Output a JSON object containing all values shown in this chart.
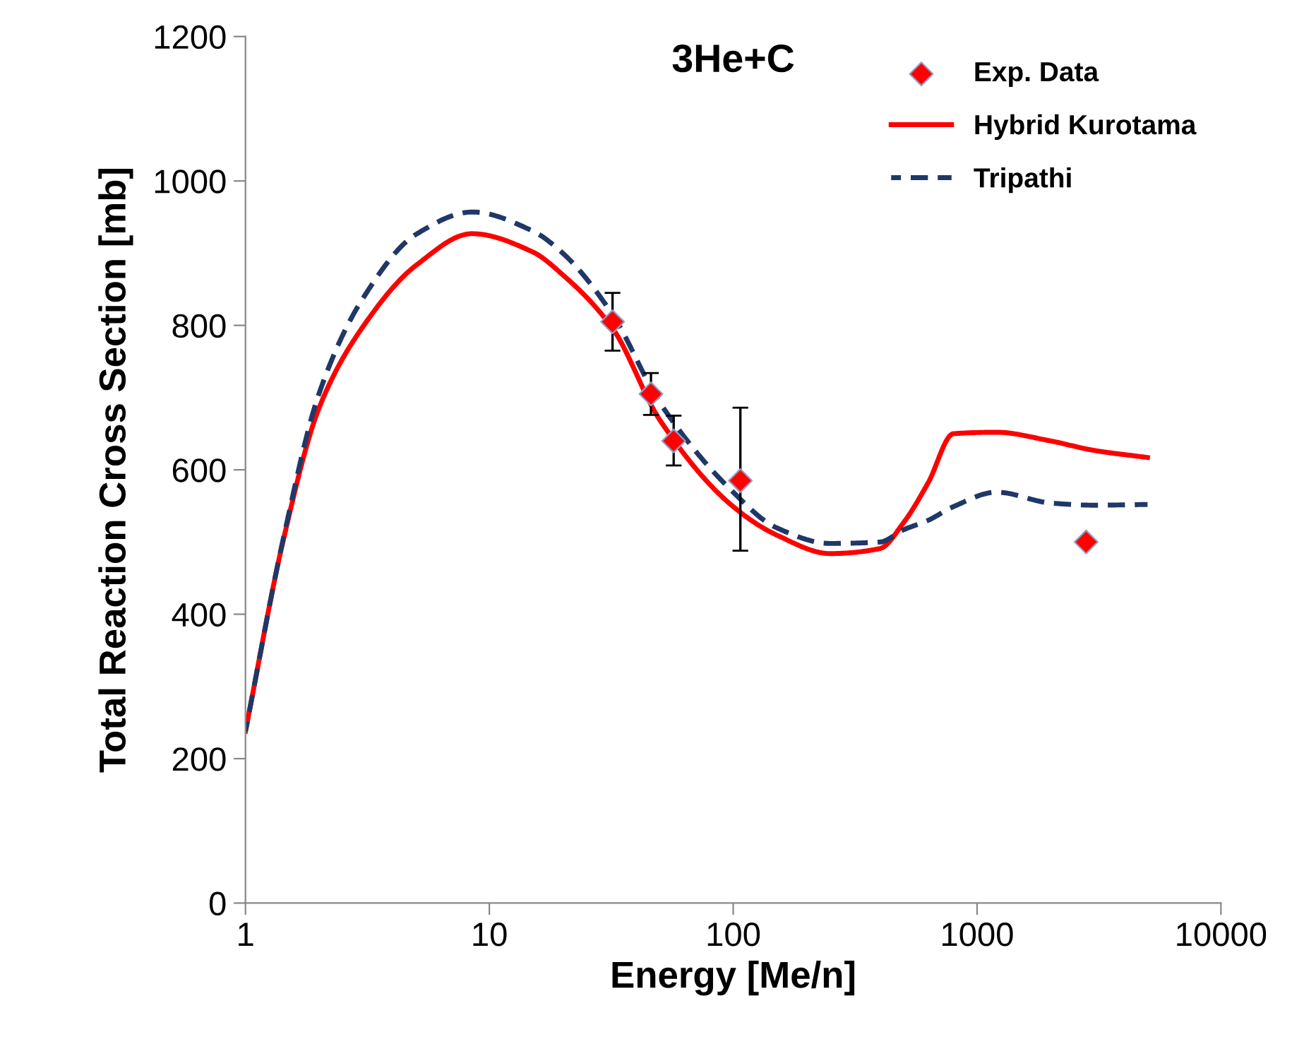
{
  "chart_data": {
    "type": "line",
    "title": "3He+C",
    "xlabel": "Energy [Me/n]",
    "ylabel": "Total Reaction Cross Section [mb]",
    "log": "x",
    "xlim": [
      1,
      10000
    ],
    "xticks": [
      1,
      10,
      100,
      1000,
      10000
    ],
    "ylim": [
      0,
      1200
    ],
    "yticks": [
      0,
      200,
      400,
      600,
      800,
      1000,
      1200
    ],
    "grid": false,
    "legend": "top right",
    "series": [
      {
        "name": "Exp. Data",
        "type": "scatter",
        "marker": "diamond",
        "color": "#ff0000",
        "x": [
          32,
          46,
          57,
          107,
          2800
        ],
        "values": [
          805,
          705,
          640,
          585,
          500
        ],
        "errors": [
          [
            765,
            845
          ],
          [
            676,
            734
          ],
          [
            606,
            675
          ],
          [
            488,
            686
          ],
          null
        ]
      },
      {
        "name": "Hybrid Kurotama",
        "line_style": "solid",
        "color": "#ff0000",
        "x": [
          1,
          1.43,
          2,
          3,
          5,
          8.5,
          15,
          20,
          32,
          50,
          100,
          150,
          250,
          400,
          500,
          630,
          800,
          1200,
          2000,
          3000,
          5000
        ],
        "values": [
          238,
          503,
          685,
          796,
          883,
          927,
          902,
          870,
          796,
          669,
          549,
          510,
          484,
          491,
          527,
          582,
          650,
          652,
          640,
          627,
          617
        ]
      },
      {
        "name": "Tripathi",
        "line_style": "dashed",
        "color": "#1f3868",
        "x": [
          1,
          1.43,
          2,
          3,
          5,
          8.5,
          15,
          20,
          32,
          50,
          100,
          150,
          250,
          400,
          500,
          630,
          800,
          1200,
          2000,
          3000,
          5000
        ],
        "values": [
          238,
          505,
          705,
          835,
          926,
          957,
          931,
          900,
          815,
          693,
          569,
          520,
          498,
          500,
          517,
          530,
          549,
          569,
          554,
          551,
          552
        ]
      }
    ]
  }
}
